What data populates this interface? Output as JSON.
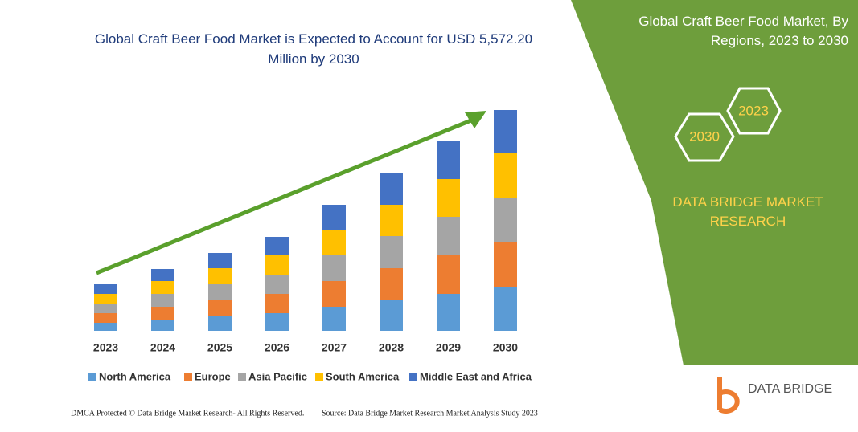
{
  "chart_data": {
    "type": "bar",
    "stacked": true,
    "title": "Global Craft Beer Food Market is Expected to Account for USD 5,572.20 Million by 2030",
    "categories": [
      "2023",
      "2024",
      "2025",
      "2026",
      "2027",
      "2028",
      "2029",
      "2030"
    ],
    "series": [
      {
        "name": "North America",
        "color": "#5b9bd5",
        "values": [
          10,
          14,
          18,
          22,
          30,
          38,
          46,
          55
        ]
      },
      {
        "name": "Europe",
        "color": "#ed7d31",
        "values": [
          12,
          16,
          20,
          24,
          32,
          40,
          48,
          56
        ]
      },
      {
        "name": "Asia Pacific",
        "color": "#a5a5a5",
        "values": [
          12,
          16,
          20,
          24,
          32,
          40,
          48,
          55
        ]
      },
      {
        "name": "South America",
        "color": "#ffc000",
        "values": [
          12,
          16,
          20,
          24,
          32,
          39,
          47,
          55
        ]
      },
      {
        "name": "Middle East and Africa",
        "color": "#4472c4",
        "values": [
          12,
          15,
          19,
          23,
          31,
          39,
          47,
          54
        ]
      }
    ]
  },
  "panel": {
    "title": "Global Craft Beer Food Market, By Regions, 2023 to 2030",
    "hex_start": "2023",
    "hex_end": "2030",
    "brand": "DATA BRIDGE MARKET RESEARCH"
  },
  "logo": "DATA BRIDGE",
  "footer": {
    "left": "DMCA Protected © Data Bridge Market Research- All Rights Reserved.",
    "right": "Source: Data Bridge Market Research Market Analysis Study 2023"
  }
}
